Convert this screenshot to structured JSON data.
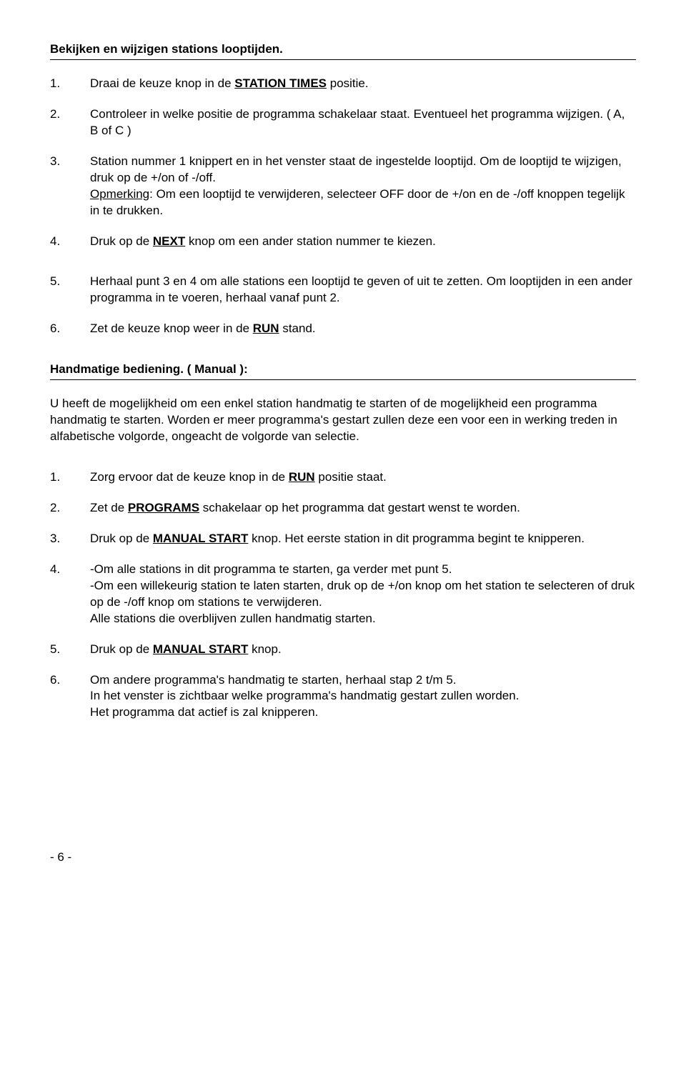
{
  "section1": {
    "title": "Bekijken en wijzigen stations looptijden.",
    "items": [
      {
        "num": "1.",
        "pre": "Draai de keuze knop in de ",
        "kw": "STATION TIMES",
        "post": " positie."
      },
      {
        "num": "2.",
        "text": "Controleer in welke positie de programma schakelaar staat. Eventueel het programma wijzigen. ( A, B of C )"
      },
      {
        "num": "3.",
        "line1": "Station nummer 1 knippert en in het venster staat de ingestelde looptijd. Om de looptijd te wijzigen, druk op de +/on of -/off.",
        "note_label": "Opmerking",
        "note_rest": ": Om een looptijd te verwijderen, selecteer OFF door de +/on en de -/off knoppen tegelijk in te drukken."
      },
      {
        "num": "4.",
        "pre": "Druk op de ",
        "kw": "NEXT",
        "post": " knop om een ander station nummer te kiezen."
      },
      {
        "num": "5.",
        "text": "Herhaal punt 3 en 4 om alle stations een looptijd te geven of uit te zetten. Om looptijden in een ander programma in te voeren, herhaal vanaf punt 2."
      },
      {
        "num": "6.",
        "pre": "Zet de keuze knop weer in de ",
        "kw": "RUN",
        "post": " stand."
      }
    ]
  },
  "section2": {
    "title": "Handmatige bediening. ( Manual ):",
    "intro": "U heeft de mogelijkheid om een enkel station handmatig te starten of de mogelijkheid een programma handmatig te starten. Worden er meer programma's gestart zullen deze een voor een in werking treden in alfabetische volgorde, ongeacht de volgorde van selectie.",
    "items": [
      {
        "num": "1.",
        "pre": "Zorg ervoor dat de keuze knop in de ",
        "kw": "RUN",
        "post": " positie staat."
      },
      {
        "num": "2.",
        "pre": "Zet de ",
        "kw": "PROGRAMS",
        "post": " schakelaar op het programma dat gestart wenst te worden."
      },
      {
        "num": "3.",
        "pre": "Druk op de ",
        "kw": "MANUAL START",
        "post": " knop. Het eerste station in dit programma begint te knipperen."
      },
      {
        "num": "4.",
        "text": "-Om alle stations in dit programma te starten, ga verder met punt 5.\n-Om een willekeurig station te laten starten, druk op de +/on knop om het station te selecteren of druk op de -/off knop om stations te verwijderen.\nAlle stations die overblijven zullen handmatig starten."
      },
      {
        "num": "5.",
        "pre": "Druk op de ",
        "kw": "MANUAL START",
        "post": " knop."
      },
      {
        "num": "6.",
        "text": "Om andere programma's handmatig te starten, herhaal stap 2 t/m 5.\nIn het venster is zichtbaar welke programma's handmatig gestart zullen worden.\nHet programma dat actief is zal knipperen."
      }
    ]
  },
  "pagenum": "- 6 -"
}
